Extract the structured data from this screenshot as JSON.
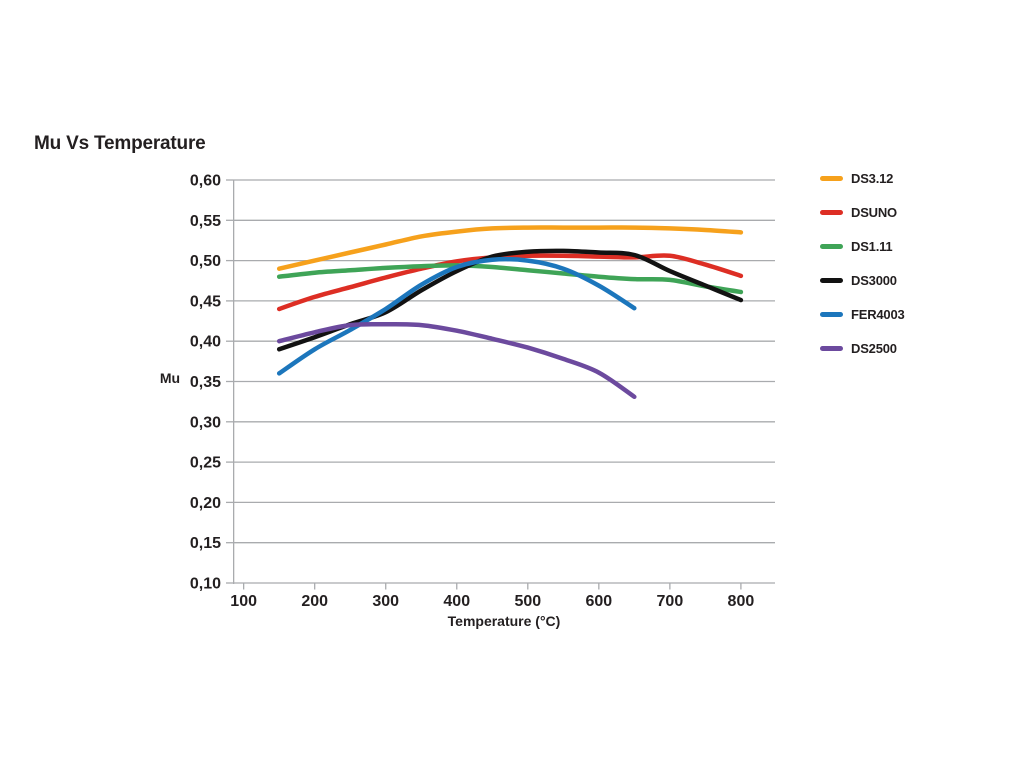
{
  "title": "Mu Vs Temperature",
  "colors": {
    "background": "#FFFFFF",
    "grid": "#A9ABAE",
    "axis": "#A9ABAE",
    "text": "#231F20"
  },
  "chart_data": {
    "type": "line",
    "title": "Mu Vs Temperature",
    "xlabel": "Temperature (°C)",
    "ylabel": "Mu",
    "xlim": [
      85,
      848
    ],
    "ylim": [
      0.1,
      0.6
    ],
    "grid": "horizontal",
    "legend_position": "right",
    "x_ticks": [
      {
        "value": 100,
        "label": "100"
      },
      {
        "value": 200,
        "label": "200"
      },
      {
        "value": 300,
        "label": "300"
      },
      {
        "value": 400,
        "label": "400"
      },
      {
        "value": 500,
        "label": "500"
      },
      {
        "value": 600,
        "label": "600"
      },
      {
        "value": 700,
        "label": "700"
      },
      {
        "value": 800,
        "label": "800"
      }
    ],
    "y_ticks": [
      {
        "value": 0.6,
        "label": "0,60"
      },
      {
        "value": 0.55,
        "label": "0,55"
      },
      {
        "value": 0.5,
        "label": "0,50"
      },
      {
        "value": 0.45,
        "label": "0,45"
      },
      {
        "value": 0.4,
        "label": "0,40"
      },
      {
        "value": 0.35,
        "label": "0,35"
      },
      {
        "value": 0.3,
        "label": "0,30"
      },
      {
        "value": 0.25,
        "label": "0,25"
      },
      {
        "value": 0.2,
        "label": "0,20"
      },
      {
        "value": 0.15,
        "label": "0,15"
      },
      {
        "value": 0.1,
        "label": "0,10"
      }
    ],
    "x": [
      150,
      200,
      250,
      300,
      350,
      400,
      450,
      500,
      550,
      600,
      650,
      700,
      750,
      800
    ],
    "series": [
      {
        "name": "DS3.12",
        "color": "#F6A11C",
        "values": [
          0.49,
          0.5,
          0.51,
          0.52,
          0.53,
          0.536,
          0.54,
          0.541,
          0.541,
          0.541,
          0.541,
          0.54,
          0.538,
          0.535
        ]
      },
      {
        "name": "DSUNO",
        "color": "#DD2E24",
        "values": [
          0.44,
          0.455,
          0.467,
          0.479,
          0.49,
          0.499,
          0.504,
          0.506,
          0.506,
          0.505,
          0.504,
          0.506,
          0.495,
          0.481
        ]
      },
      {
        "name": "DS1.11",
        "color": "#3FA457",
        "values": [
          0.48,
          0.485,
          0.488,
          0.491,
          0.493,
          0.494,
          0.492,
          0.488,
          0.484,
          0.48,
          0.477,
          0.476,
          0.468,
          0.461
        ]
      },
      {
        "name": "DS3000",
        "color": "#121212",
        "values": [
          0.39,
          0.405,
          0.421,
          0.436,
          0.463,
          0.487,
          0.505,
          0.511,
          0.512,
          0.51,
          0.507,
          0.487,
          0.469,
          0.451
        ]
      },
      {
        "name": "FER4003",
        "color": "#1C76BC",
        "values": [
          0.36,
          0.39,
          0.414,
          0.44,
          0.47,
          0.492,
          0.501,
          0.5,
          0.49,
          0.469,
          0.441,
          null,
          null,
          null
        ]
      },
      {
        "name": "DS2500",
        "color": "#6C4A9E",
        "values": [
          0.4,
          0.411,
          0.42,
          0.421,
          0.42,
          0.413,
          0.403,
          0.392,
          0.378,
          0.361,
          0.331,
          null,
          null,
          null
        ]
      }
    ]
  }
}
